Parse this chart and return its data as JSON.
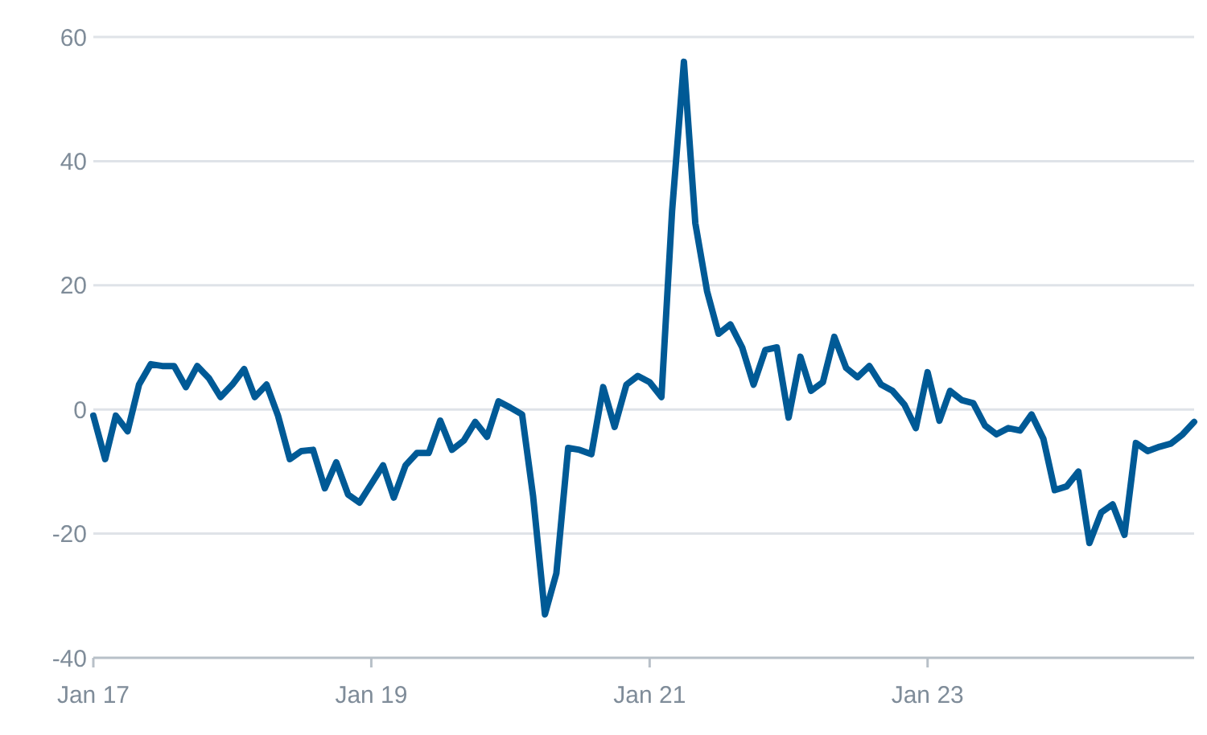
{
  "chart_data": {
    "type": "line",
    "x": [
      "2017-01",
      "2017-02",
      "2017-03",
      "2017-04",
      "2017-05",
      "2017-06",
      "2017-07",
      "2017-08",
      "2017-09",
      "2017-10",
      "2017-11",
      "2017-12",
      "2018-01",
      "2018-02",
      "2018-03",
      "2018-04",
      "2018-05",
      "2018-06",
      "2018-07",
      "2018-08",
      "2018-09",
      "2018-10",
      "2018-11",
      "2018-12",
      "2019-01",
      "2019-02",
      "2019-03",
      "2019-04",
      "2019-05",
      "2019-06",
      "2019-07",
      "2019-08",
      "2019-09",
      "2019-10",
      "2019-11",
      "2019-12",
      "2020-01",
      "2020-02",
      "2020-03",
      "2020-04",
      "2020-05",
      "2020-06",
      "2020-07",
      "2020-08",
      "2020-09",
      "2020-10",
      "2020-11",
      "2020-12",
      "2021-01",
      "2021-02",
      "2021-03",
      "2021-04",
      "2021-05",
      "2021-06",
      "2021-07",
      "2021-08",
      "2021-09",
      "2021-10",
      "2021-11",
      "2021-12",
      "2022-01",
      "2022-02",
      "2022-03",
      "2022-04",
      "2022-05",
      "2022-06",
      "2022-07",
      "2022-08",
      "2022-09",
      "2022-10",
      "2022-11",
      "2022-12",
      "2023-01",
      "2023-02",
      "2023-03",
      "2023-04",
      "2023-05",
      "2023-06",
      "2023-07",
      "2023-08",
      "2023-09",
      "2023-10",
      "2023-11",
      "2023-12",
      "2024-01",
      "2024-02",
      "2024-03",
      "2024-04",
      "2024-05",
      "2024-06",
      "2024-07",
      "2024-08",
      "2024-09",
      "2024-10",
      "2024-11",
      "2024-12"
    ],
    "series": [
      {
        "color": "#005a96",
        "values": [
          -1,
          -8,
          -1,
          -3.5,
          4,
          7.3,
          7,
          7,
          3.6,
          7,
          5,
          2,
          4,
          6.5,
          2,
          4,
          -1,
          -8,
          -6.7,
          -6.5,
          -12.7,
          -8.5,
          -13.7,
          -15,
          -12,
          -9,
          -14.2,
          -9,
          -7,
          -7,
          -1.8,
          -6.5,
          -5,
          -2,
          -4.4,
          1.3,
          0.3,
          -0.8,
          -14,
          -33,
          -26.4,
          -6.2,
          -6.5,
          -7.2,
          3.6,
          -2.8,
          4,
          5.4,
          4.4,
          2,
          32,
          56,
          30,
          19,
          12.2,
          13.7,
          10,
          4,
          9.6,
          10,
          -1.3,
          8.5,
          3,
          4.4,
          11.7,
          6.7,
          5.2,
          7,
          4,
          3,
          0.8,
          -3,
          6,
          -1.8,
          3,
          1.5,
          1,
          -2.6,
          -4,
          -3,
          -3.4,
          -0.8,
          -4.7,
          -13,
          -12.4,
          -10,
          -21.5,
          -16.6,
          -15.3,
          -20.2,
          -5.4,
          -6.7,
          -6,
          -5.5,
          -4,
          -2
        ]
      }
    ],
    "xlim": [
      "2017-01",
      "2024-12"
    ],
    "xticks": [
      {
        "value": "2017-01",
        "label": "Jan 17"
      },
      {
        "value": "2019-01",
        "label": "Jan 19"
      },
      {
        "value": "2021-01",
        "label": "Jan 21"
      },
      {
        "value": "2023-01",
        "label": "Jan 23"
      }
    ],
    "ylim": [
      -40,
      60
    ],
    "yticks": [
      -40,
      -20,
      0,
      20,
      40,
      60
    ],
    "grid": "y",
    "marker": "none",
    "line_style": "solid"
  }
}
